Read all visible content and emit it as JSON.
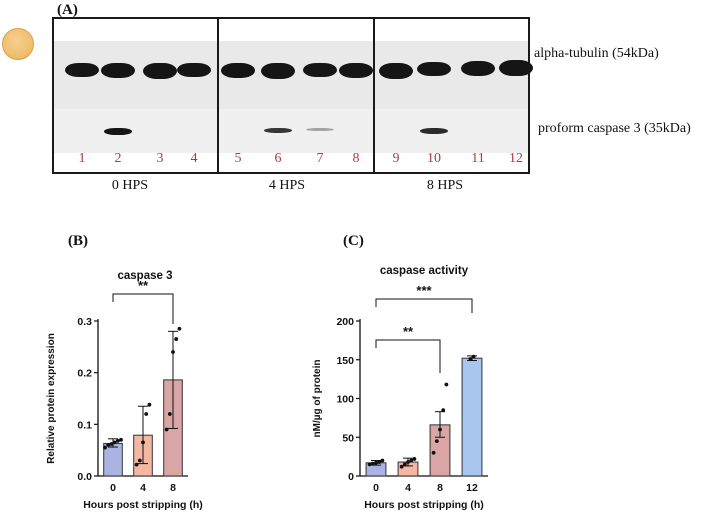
{
  "figure": {
    "panel_a_label": "(A)",
    "panel_b_label": "(B)",
    "panel_c_label": "(C)",
    "blot": {
      "band_labels": [
        "alpha-tubulin (54kDa)",
        "proform caspase 3 (35kDa)"
      ],
      "lanes": [
        "1",
        "2",
        "3",
        "4",
        "5",
        "6",
        "7",
        "8",
        "9",
        "10",
        "11",
        "12"
      ],
      "groups": [
        "0 HPS",
        "4 HPS",
        "8 HPS"
      ],
      "lane_number_color": "#b23a3a"
    }
  },
  "chart_data": [
    {
      "type": "bar",
      "title": "caspase 3",
      "xlabel": "Hours post stripping (h)",
      "ylabel": "Relative  protein expression",
      "categories": [
        "0",
        "4",
        "8"
      ],
      "values": [
        0.063,
        0.079,
        0.186
      ],
      "error_upper": [
        0.072,
        0.135,
        0.28
      ],
      "error_lower": [
        0.056,
        0.024,
        0.092
      ],
      "points": [
        [
          0.055,
          0.06,
          0.062,
          0.065,
          0.068,
          0.07
        ],
        [
          0.022,
          0.03,
          0.065,
          0.12,
          0.138
        ],
        [
          0.09,
          0.12,
          0.24,
          0.265,
          0.285
        ]
      ],
      "colors": [
        "#a9b4e3",
        "#f4b7a1",
        "#d9a5a5"
      ],
      "ylim": [
        0,
        0.3
      ],
      "yticks": [
        "0.0",
        "0.1",
        "0.2",
        "0.3"
      ],
      "significance": [
        {
          "from": "0",
          "to": "8",
          "label": "**"
        }
      ]
    },
    {
      "type": "bar",
      "title": "caspase activity",
      "xlabel": "Hours post stripping (h)",
      "ylabel": "nM/µg of protein",
      "categories": [
        "0",
        "4",
        "8",
        "12"
      ],
      "values": [
        17,
        18,
        66,
        152
      ],
      "error_upper": [
        20,
        23,
        83,
        155
      ],
      "error_lower": [
        14,
        13,
        50,
        149
      ],
      "points": [
        [
          15,
          16,
          17,
          18,
          20
        ],
        [
          12,
          15,
          18,
          20,
          22
        ],
        [
          30,
          45,
          60,
          85,
          118
        ],
        [
          151,
          154
        ]
      ],
      "colors": [
        "#a9b4e3",
        "#f4b7a1",
        "#d9a5a5",
        "#a9c7ee"
      ],
      "ylim": [
        0,
        200
      ],
      "yticks": [
        "0",
        "50",
        "100",
        "150",
        "200"
      ],
      "significance": [
        {
          "from": "0",
          "to": "8",
          "label": "**"
        },
        {
          "from": "0",
          "to": "12",
          "label": "***"
        }
      ]
    }
  ]
}
